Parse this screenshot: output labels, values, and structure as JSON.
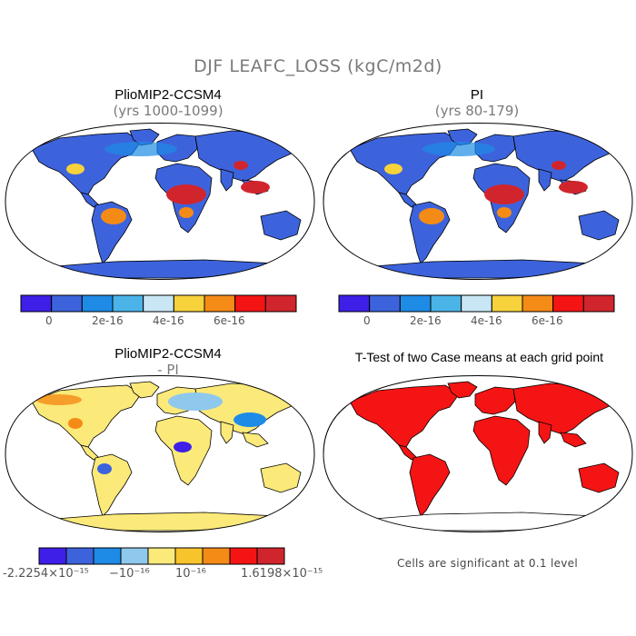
{
  "title": "DJF LEAFC_LOSS (kgC/m2d)",
  "panels": {
    "top_left": {
      "title": "PlioMIP2-CCSM4",
      "subtitle": "(yrs 1000-1099)"
    },
    "top_right": {
      "title": "PI",
      "subtitle": "(yrs 80-179)"
    },
    "bottom_left": {
      "title": "PlioMIP2-CCSM4",
      "subtitle": "- PI"
    },
    "bottom_right": {
      "title": "T-Test of two Case means at each grid point",
      "footnote": "Cells are significant at 0.1 level"
    }
  },
  "colorbars": {
    "absolute": {
      "colors": [
        "#3d1fe8",
        "#3d63dc",
        "#1e8be6",
        "#4ab4e8",
        "#c8e6f4",
        "#f7d23c",
        "#f58b17",
        "#f51414",
        "#d1252d"
      ],
      "labels": [
        "0",
        "2e-16",
        "4e-16",
        "6e-16"
      ]
    },
    "difference": {
      "colors": [
        "#3d1fe8",
        "#3d63dc",
        "#1e8be6",
        "#8ec8ec",
        "#fbe97a",
        "#f7c42c",
        "#f58b17",
        "#f51414",
        "#d1252d"
      ],
      "labels": [
        "-2.2254×10⁻¹⁵",
        "−10⁻¹⁶",
        "10⁻¹⁶",
        "1.6198×10⁻¹⁵"
      ]
    }
  },
  "map_colors": {
    "ocean": "#ffffff",
    "coast": "#000000",
    "low": "#3d63dc",
    "mid": "#1e8be6",
    "high": "#d1252d",
    "orange": "#f58b17",
    "yellow": "#f7d23c",
    "diff_base": "#fbe97a",
    "sig": "#f51414"
  }
}
